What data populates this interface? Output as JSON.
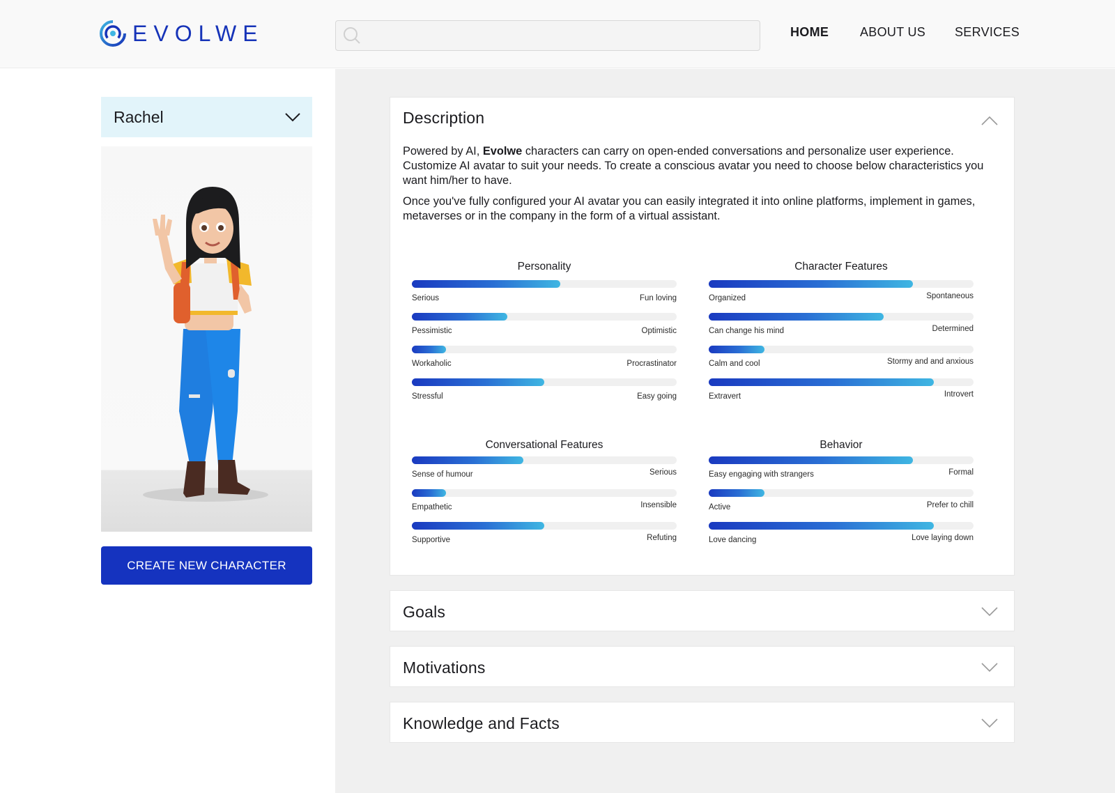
{
  "header": {
    "logo_text": "EVOLWE",
    "search": {
      "value": "",
      "placeholder": ""
    },
    "nav": [
      {
        "label": "HOME",
        "active": true
      },
      {
        "label": "ABOUT US",
        "active": false
      },
      {
        "label": "SERVICES",
        "active": false
      }
    ]
  },
  "character_select": {
    "selected": "Rachel"
  },
  "create_button_label": "CREATE NEW CHARACTER",
  "description": {
    "title": "Description",
    "p1_pre": "Powered by AI, ",
    "p1_bold": "Evolwe",
    "p1_post": " characters can carry on open-ended conversations and personalize user experience. Customize AI avatar to suit your needs. To create a conscious avatar you need to choose below characteristics you want him/her to have.",
    "p2": "Once you've fully configured your AI avatar you can easily integrated it into online platforms, implement in games, metaverses or in the company in the form of a virtual assistant."
  },
  "trait_groups": [
    {
      "title": "Personality",
      "traits": [
        {
          "left": "Serious",
          "right": "Fun loving",
          "value": 0.56
        },
        {
          "left": "Pessimistic",
          "right": "Optimistic",
          "value": 0.36
        },
        {
          "left": "Workaholic",
          "right": "Procrastinator",
          "value": 0.13
        },
        {
          "left": "Stressful",
          "right": "Easy going",
          "value": 0.5
        }
      ]
    },
    {
      "title": "Character Features",
      "traits": [
        {
          "left": "Organized",
          "right": "Spontaneous",
          "value": 0.77
        },
        {
          "left": "Can change his mind",
          "right": "Determined",
          "value": 0.66
        },
        {
          "left": "Calm and cool",
          "right": "Stormy and and anxious",
          "value": 0.21
        },
        {
          "left": "Extravert",
          "right": "Introvert",
          "value": 0.85
        }
      ]
    },
    {
      "title": "Conversational Features",
      "traits": [
        {
          "left": "Sense of humour",
          "right": "Serious",
          "value": 0.42
        },
        {
          "left": "Empathetic",
          "right": "Insensible",
          "value": 0.13
        },
        {
          "left": "Supportive",
          "right": "Refuting",
          "value": 0.5
        }
      ]
    },
    {
      "title": "Behavior",
      "traits": [
        {
          "left": "Easy engaging with strangers",
          "right": "Formal",
          "value": 0.77
        },
        {
          "left": "Active",
          "right": "Prefer to chill",
          "value": 0.21
        },
        {
          "left": "Love dancing",
          "right": "Love laying down",
          "value": 0.85
        }
      ]
    }
  ],
  "sections": [
    {
      "title": "Goals"
    },
    {
      "title": "Motivations"
    },
    {
      "title": "Knowledge and Facts"
    }
  ],
  "colors": {
    "brand_blue": "#1533bf",
    "select_bg": "#e2f4fa",
    "slider_start": "#1a3ac0",
    "slider_end": "#3fb6e2"
  },
  "icons": [
    "logo-swirl-icon",
    "search-icon",
    "chevron-down-icon",
    "chevron-up-icon"
  ]
}
